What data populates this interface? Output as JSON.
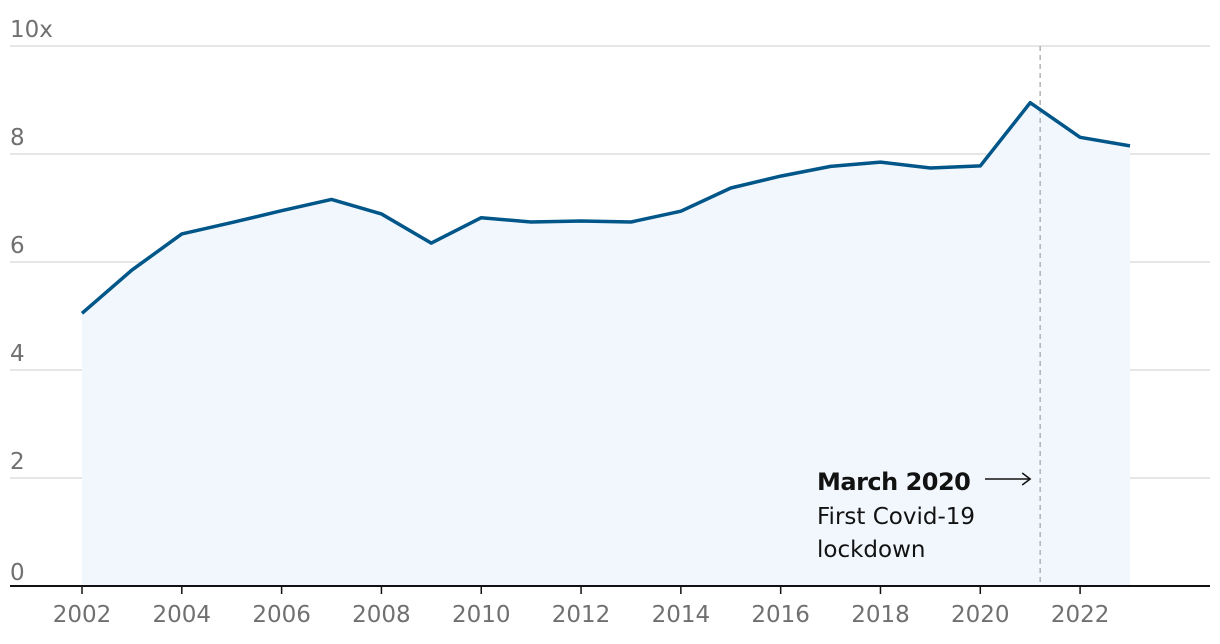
{
  "chart_data": {
    "type": "area",
    "x": [
      2002,
      2003,
      2004,
      2005,
      2006,
      2007,
      2008,
      2009,
      2010,
      2011,
      2012,
      2013,
      2014,
      2015,
      2016,
      2017,
      2018,
      2019,
      2020,
      2021,
      2022,
      2023
    ],
    "series": [
      {
        "values": [
          5.05,
          5.85,
          6.52,
          6.73,
          6.95,
          7.16,
          6.89,
          6.35,
          6.82,
          6.74,
          6.76,
          6.74,
          6.94,
          7.37,
          7.59,
          7.77,
          7.85,
          7.74,
          7.78,
          8.95,
          8.31,
          8.15
        ]
      }
    ],
    "ylim": [
      0,
      10
    ],
    "y_ticks": [
      {
        "value": 0,
        "label": "0"
      },
      {
        "value": 2,
        "label": "2"
      },
      {
        "value": 4,
        "label": "4"
      },
      {
        "value": 6,
        "label": "6"
      },
      {
        "value": 8,
        "label": "8"
      },
      {
        "value": 10,
        "label": "10x"
      }
    ],
    "x_ticks": [
      "2002",
      "2004",
      "2006",
      "2008",
      "2010",
      "2012",
      "2014",
      "2016",
      "2018",
      "2020",
      "2022"
    ],
    "grid": true,
    "colors": {
      "line": "#005689",
      "fill": "#f1f7fd",
      "grid": "#cccccc",
      "axis": "#121212",
      "marker": "#b3b3b3"
    },
    "annotation": {
      "x": 2021.2,
      "title": "March 2020",
      "lines": [
        "First Covid-19",
        "lockdown"
      ]
    }
  }
}
